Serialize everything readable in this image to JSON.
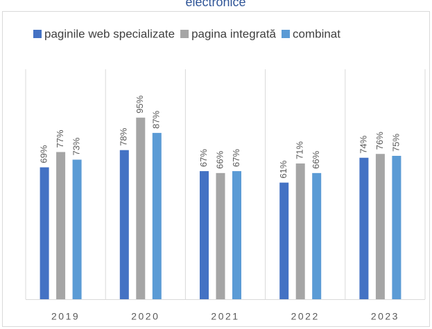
{
  "chart_data": {
    "type": "bar",
    "title": "electronice",
    "categories": [
      "2019",
      "2020",
      "2021",
      "2022",
      "2023"
    ],
    "series": [
      {
        "name": "paginile web specializate",
        "color": "#4472c4",
        "values": [
          69,
          78,
          67,
          61,
          74
        ],
        "value_labels": [
          "69%",
          "78%",
          "67%",
          "61%",
          "74%"
        ]
      },
      {
        "name": "pagina integrată",
        "color": "#a5a5a5",
        "values": [
          77,
          95,
          66,
          71,
          76
        ],
        "value_labels": [
          "77%",
          "95%",
          "66%",
          "71%",
          "76%"
        ]
      },
      {
        "name": "combinat",
        "color": "#5b9bd5",
        "values": [
          73,
          87,
          67,
          66,
          75
        ],
        "value_labels": [
          "73%",
          "87%",
          "67%",
          "66%",
          "75%"
        ]
      }
    ],
    "ylim": [
      0,
      100
    ],
    "legend": "top",
    "grid": true
  }
}
